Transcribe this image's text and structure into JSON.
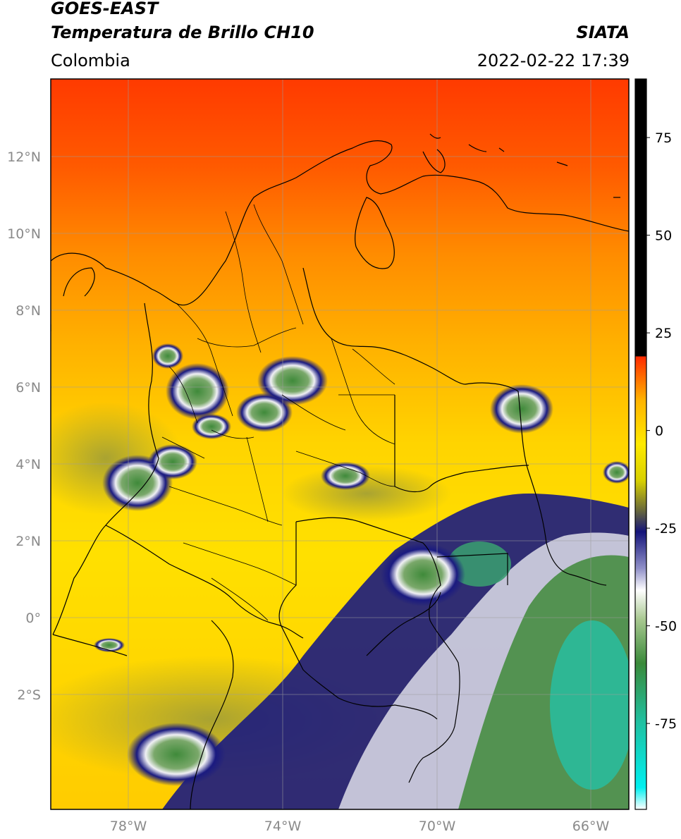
{
  "header": {
    "satellite": "GOES-EAST",
    "product": "Temperatura de Brillo CH10",
    "region": "Colombia",
    "agency": "SIATA",
    "datetime": "2022-02-22 17:39"
  },
  "map": {
    "lon_range": [
      -80,
      -65
    ],
    "lat_range": [
      -5,
      14
    ],
    "lat_ticks": [
      {
        "value": 12,
        "label": "12°N"
      },
      {
        "value": 10,
        "label": "10°N"
      },
      {
        "value": 8,
        "label": "8°N"
      },
      {
        "value": 6,
        "label": "6°N"
      },
      {
        "value": 4,
        "label": "4°N"
      },
      {
        "value": 2,
        "label": "2°N"
      },
      {
        "value": 0,
        "label": "0°"
      },
      {
        "value": -2,
        "label": "2°S"
      }
    ],
    "lon_ticks": [
      {
        "value": -78,
        "label": "78°W"
      },
      {
        "value": -74,
        "label": "74°W"
      },
      {
        "value": -70,
        "label": "70°W"
      },
      {
        "value": -66,
        "label": "66°W"
      }
    ],
    "grid": true,
    "colors": {
      "warm_red": "#ff3a00",
      "orange": "#ff8c00",
      "yellow": "#ffe600",
      "olive": "#9a9a3a",
      "navy": "#14147a",
      "white": "#f4f4f4",
      "green": "#3f8a3a",
      "cyan": "#20d2c0"
    }
  },
  "colorbar": {
    "range": [
      -97,
      90
    ],
    "ticks": [
      {
        "value": 75,
        "label": "75"
      },
      {
        "value": 50,
        "label": "50"
      },
      {
        "value": 25,
        "label": "25"
      },
      {
        "value": 0,
        "label": "0"
      },
      {
        "value": -25,
        "label": "-25"
      },
      {
        "value": -50,
        "label": "-50"
      },
      {
        "value": -75,
        "label": "-75"
      }
    ]
  }
}
